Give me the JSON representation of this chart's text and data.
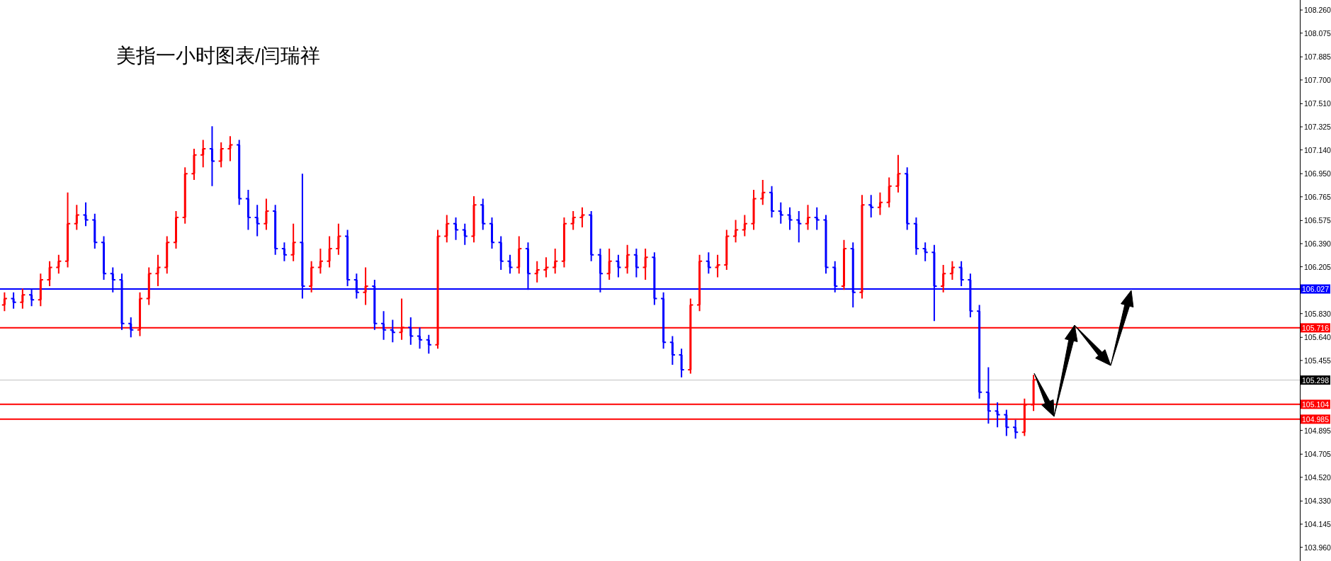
{
  "chart_data": {
    "type": "candlestick",
    "title": "美指一小时图表/闫瑞祥",
    "categories": [
      null,
      null,
      null,
      null,
      null,
      null,
      null,
      null,
      null,
      null,
      null,
      null,
      null,
      null,
      null,
      null,
      null,
      null,
      null,
      null,
      null,
      null,
      null,
      null,
      null,
      null,
      null,
      null,
      null,
      null,
      null,
      null,
      null,
      null,
      null,
      null,
      null,
      null,
      null,
      null,
      null,
      null,
      null,
      null,
      null,
      null,
      null,
      null,
      null,
      null,
      null,
      null,
      null,
      null,
      null,
      null,
      null,
      null,
      null,
      null,
      null,
      null,
      null,
      null,
      null,
      null,
      null,
      null,
      null,
      null,
      null,
      null,
      null,
      null,
      null,
      null,
      null,
      null,
      null,
      null,
      null,
      null,
      null,
      null,
      null,
      null,
      null,
      null,
      null,
      null,
      null,
      null,
      null,
      null,
      null,
      null,
      null,
      null,
      null,
      null,
      null,
      null,
      null,
      null,
      null,
      null,
      null,
      null,
      null,
      null,
      null,
      null,
      null,
      null,
      null,
      null,
      null,
      null,
      null,
      null,
      null,
      null,
      null,
      null,
      null,
      null,
      null,
      null,
      null,
      null,
      null,
      null,
      null,
      null,
      null,
      null,
      null,
      null,
      null,
      null,
      null,
      null,
      null,
      null
    ],
    "ohlc": [
      [
        105.9,
        106.0,
        105.85,
        105.95
      ],
      [
        105.95,
        106.0,
        105.87,
        105.92
      ],
      [
        105.92,
        106.03,
        105.87,
        105.98
      ],
      [
        105.98,
        106.03,
        105.89,
        105.94
      ],
      [
        105.94,
        106.15,
        105.89,
        106.1
      ],
      [
        106.1,
        106.25,
        106.05,
        106.2
      ],
      [
        106.2,
        106.3,
        106.15,
        106.25
      ],
      [
        106.25,
        106.8,
        106.2,
        106.55
      ],
      [
        106.55,
        106.7,
        106.5,
        106.62
      ],
      [
        106.62,
        106.72,
        106.53,
        106.58
      ],
      [
        106.58,
        106.63,
        106.35,
        106.4
      ],
      [
        106.4,
        106.45,
        106.1,
        106.15
      ],
      [
        106.15,
        106.2,
        106.0,
        106.1
      ],
      [
        106.1,
        106.15,
        105.7,
        105.75
      ],
      [
        105.75,
        105.8,
        105.64,
        105.7
      ],
      [
        105.7,
        106.0,
        105.65,
        105.95
      ],
      [
        105.95,
        106.2,
        105.9,
        106.15
      ],
      [
        106.15,
        106.3,
        106.05,
        106.2
      ],
      [
        106.2,
        106.45,
        106.15,
        106.4
      ],
      [
        106.4,
        106.65,
        106.35,
        106.6
      ],
      [
        106.6,
        107.0,
        106.55,
        106.95
      ],
      [
        106.95,
        107.15,
        106.9,
        107.1
      ],
      [
        107.1,
        107.22,
        107.0,
        107.15
      ],
      [
        107.15,
        107.33,
        106.85,
        107.05
      ],
      [
        107.05,
        107.2,
        107.0,
        107.15
      ],
      [
        107.15,
        107.25,
        107.05,
        107.18
      ],
      [
        107.18,
        107.22,
        106.7,
        106.75
      ],
      [
        106.75,
        106.82,
        106.5,
        106.6
      ],
      [
        106.6,
        106.7,
        106.45,
        106.55
      ],
      [
        106.55,
        106.75,
        106.5,
        106.65
      ],
      [
        106.65,
        106.7,
        106.3,
        106.35
      ],
      [
        106.35,
        106.4,
        106.25,
        106.3
      ],
      [
        106.3,
        106.55,
        106.25,
        106.4
      ],
      [
        106.4,
        106.95,
        105.95,
        106.05
      ],
      [
        106.05,
        106.25,
        106.0,
        106.2
      ],
      [
        106.2,
        106.35,
        106.15,
        106.25
      ],
      [
        106.25,
        106.45,
        106.2,
        106.35
      ],
      [
        106.35,
        106.55,
        106.3,
        106.45
      ],
      [
        106.45,
        106.5,
        106.05,
        106.1
      ],
      [
        106.1,
        106.15,
        105.95,
        106.0
      ],
      [
        106.0,
        106.2,
        105.9,
        106.05
      ],
      [
        106.05,
        106.1,
        105.7,
        105.75
      ],
      [
        105.75,
        105.85,
        105.62,
        105.7
      ],
      [
        105.7,
        105.78,
        105.6,
        105.68
      ],
      [
        105.68,
        105.95,
        105.62,
        105.72
      ],
      [
        105.72,
        105.8,
        105.58,
        105.65
      ],
      [
        105.65,
        105.72,
        105.55,
        105.62
      ],
      [
        105.62,
        105.66,
        105.51,
        105.58
      ],
      [
        105.58,
        106.5,
        105.55,
        106.45
      ],
      [
        106.45,
        106.62,
        106.4,
        106.55
      ],
      [
        106.55,
        106.6,
        106.42,
        106.5
      ],
      [
        106.5,
        106.55,
        106.38,
        106.45
      ],
      [
        106.45,
        106.77,
        106.4,
        106.7
      ],
      [
        106.7,
        106.75,
        106.5,
        106.55
      ],
      [
        106.55,
        106.6,
        106.35,
        106.4
      ],
      [
        106.4,
        106.45,
        106.18,
        106.25
      ],
      [
        106.25,
        106.3,
        106.15,
        106.2
      ],
      [
        106.2,
        106.45,
        106.15,
        106.35
      ],
      [
        106.35,
        106.4,
        106.02,
        106.15
      ],
      [
        106.15,
        106.25,
        106.08,
        106.18
      ],
      [
        106.18,
        106.28,
        106.12,
        106.2
      ],
      [
        106.2,
        106.35,
        106.15,
        106.25
      ],
      [
        106.25,
        106.6,
        106.2,
        106.55
      ],
      [
        106.55,
        106.65,
        106.5,
        106.6
      ],
      [
        106.6,
        106.68,
        106.52,
        106.62
      ],
      [
        106.62,
        106.65,
        106.25,
        106.3
      ],
      [
        106.3,
        106.35,
        106.0,
        106.15
      ],
      [
        106.15,
        106.35,
        106.1,
        106.25
      ],
      [
        106.25,
        106.3,
        106.12,
        106.2
      ],
      [
        106.2,
        106.38,
        106.15,
        106.3
      ],
      [
        106.3,
        106.35,
        106.12,
        106.2
      ],
      [
        106.2,
        106.35,
        106.1,
        106.28
      ],
      [
        106.28,
        106.32,
        105.9,
        105.95
      ],
      [
        105.95,
        106.0,
        105.55,
        105.6
      ],
      [
        105.6,
        105.65,
        105.42,
        105.5
      ],
      [
        105.5,
        105.55,
        105.32,
        105.38
      ],
      [
        105.38,
        105.95,
        105.35,
        105.9
      ],
      [
        105.9,
        106.3,
        105.85,
        106.25
      ],
      [
        106.25,
        106.32,
        106.15,
        106.2
      ],
      [
        106.2,
        106.3,
        106.12,
        106.22
      ],
      [
        106.22,
        106.5,
        106.18,
        106.45
      ],
      [
        106.45,
        106.58,
        106.4,
        106.5
      ],
      [
        106.5,
        106.62,
        106.45,
        106.55
      ],
      [
        106.55,
        106.82,
        106.5,
        106.75
      ],
      [
        106.75,
        106.9,
        106.7,
        106.8
      ],
      [
        106.8,
        106.85,
        106.6,
        106.65
      ],
      [
        106.65,
        106.72,
        106.55,
        106.62
      ],
      [
        106.62,
        106.68,
        106.5,
        106.58
      ],
      [
        106.58,
        106.65,
        106.4,
        106.55
      ],
      [
        106.55,
        106.7,
        106.5,
        106.6
      ],
      [
        106.6,
        106.68,
        106.5,
        106.58
      ],
      [
        106.58,
        106.62,
        106.15,
        106.2
      ],
      [
        106.2,
        106.25,
        106.0,
        106.05
      ],
      [
        106.05,
        106.42,
        106.02,
        106.35
      ],
      [
        106.35,
        106.4,
        105.88,
        106.0
      ],
      [
        106.0,
        106.78,
        105.95,
        106.7
      ],
      [
        106.7,
        106.78,
        106.6,
        106.68
      ],
      [
        106.68,
        106.8,
        106.62,
        106.72
      ],
      [
        106.72,
        106.92,
        106.68,
        106.85
      ],
      [
        106.85,
        107.1,
        106.8,
        106.95
      ],
      [
        106.95,
        107.0,
        106.5,
        106.55
      ],
      [
        106.55,
        106.6,
        106.3,
        106.35
      ],
      [
        106.35,
        106.4,
        106.25,
        106.32
      ],
      [
        106.32,
        106.38,
        105.77,
        106.05
      ],
      [
        106.05,
        106.22,
        106.0,
        106.15
      ],
      [
        106.15,
        106.25,
        106.1,
        106.2
      ],
      [
        106.2,
        106.25,
        106.05,
        106.1
      ],
      [
        106.1,
        106.15,
        105.8,
        105.85
      ],
      [
        105.85,
        105.9,
        105.15,
        105.2
      ],
      [
        105.2,
        105.4,
        104.95,
        105.05
      ],
      [
        105.05,
        105.12,
        104.92,
        105.02
      ],
      [
        105.02,
        105.06,
        104.85,
        104.92
      ],
      [
        104.92,
        104.98,
        104.83,
        104.88
      ],
      [
        104.88,
        105.15,
        104.85,
        105.1
      ],
      [
        105.1,
        105.34,
        105.05,
        105.3
      ],
      null,
      null,
      null,
      null,
      null,
      null,
      null,
      null,
      null,
      null,
      null,
      null,
      null,
      null,
      null,
      null,
      null,
      null,
      null,
      null,
      null,
      null,
      null,
      null,
      null,
      null,
      null,
      null,
      null
    ],
    "colors": [
      "#ff0000",
      "#0000ff",
      "#ff0000",
      "#0000ff",
      "#ff0000",
      "#ff0000",
      "#ff0000",
      "#ff0000",
      "#ff0000",
      "#0000ff",
      "#0000ff",
      "#0000ff",
      "#0000ff",
      "#0000ff",
      "#0000ff",
      "#ff0000",
      "#ff0000",
      "#ff0000",
      "#ff0000",
      "#ff0000",
      "#ff0000",
      "#ff0000",
      "#ff0000",
      "#0000ff",
      "#ff0000",
      "#ff0000",
      "#0000ff",
      "#0000ff",
      "#0000ff",
      "#ff0000",
      "#0000ff",
      "#0000ff",
      "#ff0000",
      "#0000ff",
      "#ff0000",
      "#ff0000",
      "#ff0000",
      "#ff0000",
      "#0000ff",
      "#0000ff",
      "#ff0000",
      "#0000ff",
      "#0000ff",
      "#0000ff",
      "#ff0000",
      "#0000ff",
      "#0000ff",
      "#0000ff",
      "#ff0000",
      "#ff0000",
      "#0000ff",
      "#0000ff",
      "#ff0000",
      "#0000ff",
      "#0000ff",
      "#0000ff",
      "#0000ff",
      "#ff0000",
      "#0000ff",
      "#ff0000",
      "#ff0000",
      "#ff0000",
      "#ff0000",
      "#ff0000",
      "#ff0000",
      "#0000ff",
      "#0000ff",
      "#ff0000",
      "#0000ff",
      "#ff0000",
      "#0000ff",
      "#ff0000",
      "#0000ff",
      "#0000ff",
      "#0000ff",
      "#0000ff",
      "#ff0000",
      "#ff0000",
      "#0000ff",
      "#ff0000",
      "#ff0000",
      "#ff0000",
      "#ff0000",
      "#ff0000",
      "#ff0000",
      "#0000ff",
      "#0000ff",
      "#0000ff",
      "#0000ff",
      "#ff0000",
      "#0000ff",
      "#0000ff",
      "#0000ff",
      "#ff0000",
      "#0000ff",
      "#ff0000",
      "#0000ff",
      "#ff0000",
      "#ff0000",
      "#ff0000",
      "#0000ff",
      "#0000ff",
      "#0000ff",
      "#0000ff",
      "#ff0000",
      "#ff0000",
      "#0000ff",
      "#0000ff",
      "#0000ff",
      "#0000ff",
      "#0000ff",
      "#0000ff",
      "#0000ff",
      "#ff0000",
      "#ff0000",
      null,
      null,
      null,
      null,
      null,
      null,
      null,
      null,
      null,
      null,
      null,
      null,
      null,
      null,
      null,
      null,
      null,
      null,
      null,
      null,
      null,
      null,
      null,
      null,
      null,
      null,
      null,
      null,
      null
    ],
    "ylim": [
      103.85,
      108.34
    ],
    "yticks": [
      {
        "value": 103.96,
        "label": "103.960"
      },
      104.145,
      {
        "value": 104.33,
        "label": "104.330"
      },
      {
        "value": 104.52,
        "label": "104.520"
      },
      104.705,
      104.895,
      105.455,
      {
        "value": 105.64,
        "label": "105.640"
      },
      {
        "value": 105.83,
        "label": "105.830"
      },
      106.205,
      {
        "value": 106.39,
        "label": "106.390"
      },
      106.575,
      106.765,
      {
        "value": 106.95,
        "label": "106.950"
      },
      {
        "value": 107.14,
        "label": "107.140"
      },
      107.325,
      {
        "value": 107.51,
        "label": "107.510"
      },
      {
        "value": 107.7,
        "label": "107.700"
      },
      107.885,
      108.075,
      {
        "value": 108.26,
        "label": "108.260"
      }
    ],
    "ref_lines": [
      {
        "axis": "y",
        "value": 106.027,
        "label": "106.027",
        "color": "#0000ff"
      },
      {
        "axis": "y",
        "value": 105.716,
        "label": "105.716",
        "color": "#ff0000"
      },
      {
        "axis": "y",
        "value": 105.298,
        "label": "105.298",
        "color": "#c0c0c0"
      },
      {
        "axis": "y",
        "value": 105.104,
        "label": "105.104",
        "color": "#ff0000"
      },
      {
        "axis": "y",
        "value": 104.985,
        "label": "104.985",
        "color": "#ff0000"
      }
    ],
    "tick_labels": "y",
    "grid": false
  }
}
